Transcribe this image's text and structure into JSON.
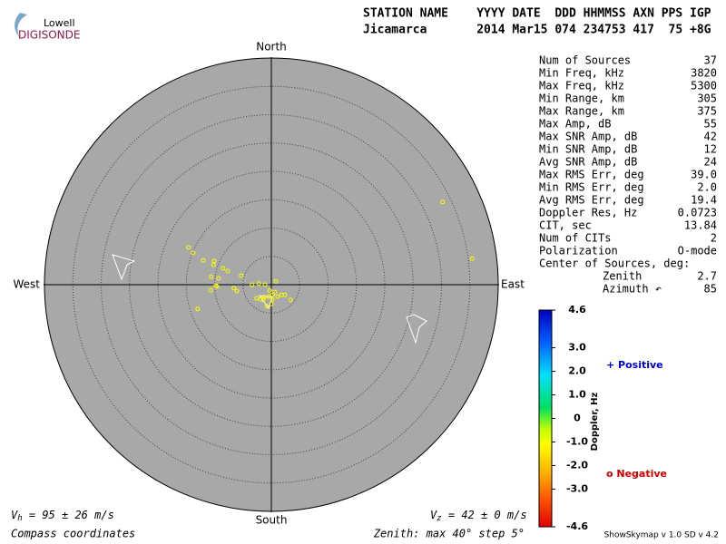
{
  "logo": {
    "top": "Lowell",
    "bottom": "DIGISONDE"
  },
  "header": {
    "line1": "STATION NAME    YYYY DATE  DDD HHMMSS AXN PPS IGP",
    "line2": "Jicamarca       2014 Mar15 074 234753 417  75 +8G"
  },
  "stats": {
    "rows": [
      [
        "Num of Sources",
        "37"
      ],
      [
        "Min Freq, kHz",
        "3820"
      ],
      [
        "Max Freq, kHz",
        "5300"
      ],
      [
        "Min Range, km",
        "305"
      ],
      [
        "Max Range, km",
        "375"
      ],
      [
        "Max Amp, dB",
        "55"
      ],
      [
        "Max SNR Amp, dB",
        "42"
      ],
      [
        "Min SNR Amp, dB",
        "12"
      ],
      [
        "Avg SNR Amp, dB",
        "24"
      ],
      [
        "Max RMS Err, deg",
        "39.0"
      ],
      [
        "Min RMS Err, deg",
        "2.0"
      ],
      [
        "Avg RMS Err, deg",
        "19.4"
      ],
      [
        "Doppler Res, Hz",
        "0.0723"
      ],
      [
        "CIT, sec",
        "13.84"
      ],
      [
        "Num of CITs",
        "2"
      ],
      [
        "Polarization",
        "O-mode"
      ]
    ],
    "center": {
      "label": "Center of Sources, deg:",
      "rows": [
        [
          "Zenith",
          "2.7"
        ],
        [
          "Azimuth ↶",
          "85"
        ]
      ]
    }
  },
  "legend": {
    "positive": "+ Positive",
    "negative": "o Negative"
  },
  "footer": {
    "vh_symbol": "V",
    "vh_sub": "h",
    "vh_text": " = 95 ± 26 m/s",
    "vz_symbol": "V",
    "vz_sub": "z",
    "vz_text": " = 42 ± 0 m/s",
    "coords": "Compass coordinates",
    "zenith": "Zenith: max 40°  step 5°",
    "version": "ShowSkymap v 1.0  SD v 4.2"
  },
  "chart_data": [
    {
      "type": "scatter",
      "color": "#ffff00",
      "compass": {
        "north": "North",
        "south": "South",
        "east": "East",
        "west": "West"
      },
      "xlim": [
        -40,
        40
      ],
      "ylim": [
        -40,
        40
      ],
      "rticks": [
        5,
        10,
        15,
        20,
        25,
        30,
        35
      ],
      "x": [
        -14.6,
        -13.8,
        -12.0,
        -10.1,
        -10.2,
        -8.5,
        -7.7,
        -10.6,
        -9.3,
        -5.3,
        -9.6,
        -9.8,
        -10.7,
        -6.6,
        -6.1,
        -13.0,
        -3.4,
        -2.2,
        -1.1,
        0.8,
        -1.9,
        -1.3,
        -0.5,
        0.2,
        0.6,
        1.1,
        1.8,
        2.4,
        0,
        -0.8,
        3.4,
        -0.3,
        -1.4,
        30.2,
        35.4,
        0.2,
        -2.6
      ],
      "values": [
        6.6,
        5.6,
        4.3,
        4.2,
        3.5,
        2.9,
        2.4,
        1.4,
        1.1,
        1.6,
        -0.3,
        -0.2,
        -1.0,
        -0.6,
        -1.1,
        -4.3,
        0,
        0.2,
        0,
        0.6,
        -2.6,
        -2.2,
        -2.1,
        -1.8,
        -1.3,
        -2.1,
        -1.8,
        -1.8,
        -3.4,
        -3.8,
        -2.7,
        -1.0,
        -2.6,
        14.6,
        4.6,
        -2.6,
        -2.4
      ]
    },
    {
      "type": "colorbar",
      "label": "Doppler, Hz",
      "ylim": [
        -4.6,
        4.6
      ],
      "yticks": [
        4.6,
        {
          "value": 3,
          "label": "3.0"
        },
        {
          "value": 2,
          "label": "2.0"
        },
        {
          "value": 1,
          "label": "1.0"
        },
        0,
        {
          "value": -1,
          "label": "-1.0"
        },
        {
          "value": -2,
          "label": "-2.0"
        },
        {
          "value": -3,
          "label": "-3.0"
        },
        -4.6
      ]
    }
  ]
}
